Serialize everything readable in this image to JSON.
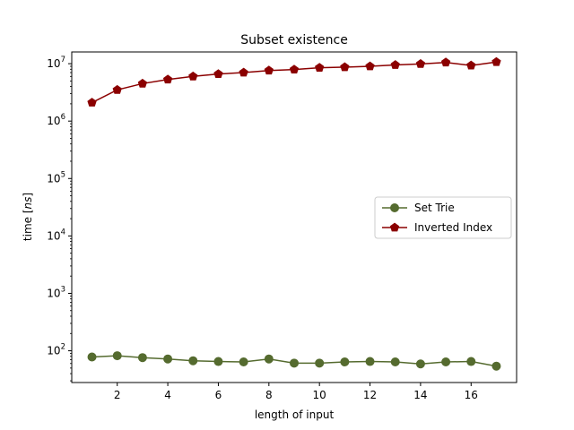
{
  "chart_data": {
    "type": "line",
    "title": "Subset existence",
    "xlabel": "length of input",
    "ylabel_prefix": "time [",
    "ylabel_unit": "ns",
    "ylabel_suffix": "]",
    "xlim": [
      0.2,
      17.8
    ],
    "ylog": true,
    "ylim": [
      28,
      16000000
    ],
    "x_ticks": [
      2,
      4,
      6,
      8,
      10,
      12,
      14,
      16
    ],
    "y_ticks": [
      {
        "value": 100,
        "exp": "2"
      },
      {
        "value": 1000,
        "exp": "3"
      },
      {
        "value": 10000,
        "exp": "4"
      },
      {
        "value": 100000,
        "exp": "5"
      },
      {
        "value": 1000000,
        "exp": "6"
      },
      {
        "value": 10000000,
        "exp": "7"
      }
    ],
    "y_tick_base": "10",
    "legend_position": "center-right",
    "x": [
      1,
      2,
      3,
      4,
      5,
      6,
      7,
      8,
      9,
      10,
      11,
      12,
      13,
      14,
      15,
      16,
      17
    ],
    "series": [
      {
        "name": "Set Trie",
        "color": "#556b2f",
        "marker": "circle",
        "values": [
          78,
          82,
          76,
          72,
          67,
          65,
          64,
          72,
          61,
          61,
          64,
          65,
          64,
          59,
          64,
          65,
          54
        ]
      },
      {
        "name": "Inverted Index",
        "color": "#8b0000",
        "marker": "pentagon",
        "values": [
          2100000,
          3500000,
          4500000,
          5300000,
          6000000,
          6600000,
          7000000,
          7600000,
          7900000,
          8500000,
          8700000,
          9000000,
          9500000,
          9900000,
          10500000,
          9300000,
          10700000
        ]
      }
    ]
  }
}
